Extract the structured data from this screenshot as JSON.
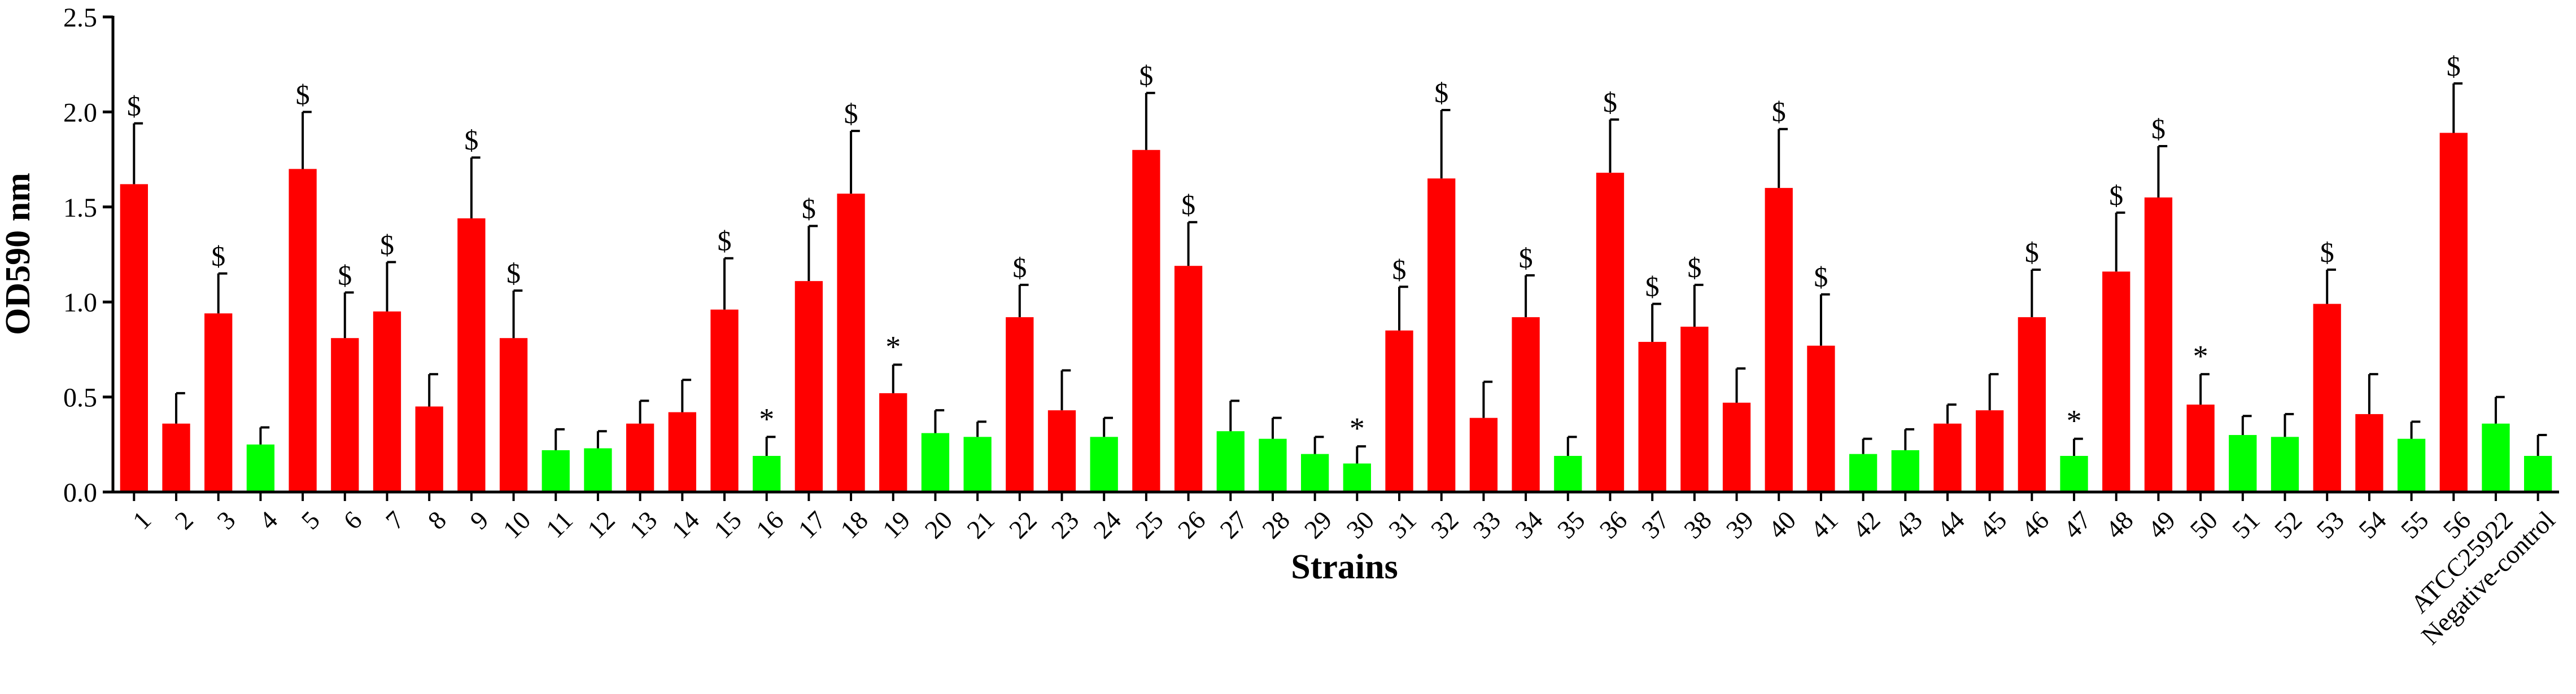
{
  "chart_data": {
    "type": "bar",
    "title": "",
    "xlabel": "Strains",
    "ylabel": "OD590 nm",
    "ylim": [
      0,
      2.5
    ],
    "yticks": [
      "0.0",
      "0.5",
      "1.0",
      "1.5",
      "2.0",
      "2.5"
    ],
    "grid": false,
    "legend": "none",
    "colors": {
      "red": "#ff0000",
      "green": "#00ff00",
      "axis": "#000000"
    },
    "categories": [
      "1",
      "2",
      "3",
      "4",
      "5",
      "6",
      "7",
      "8",
      "9",
      "10",
      "11",
      "12",
      "13",
      "14",
      "15",
      "16",
      "17",
      "18",
      "19",
      "20",
      "21",
      "22",
      "23",
      "24",
      "25",
      "26",
      "27",
      "28",
      "29",
      "30",
      "31",
      "32",
      "33",
      "34",
      "35",
      "36",
      "37",
      "38",
      "39",
      "40",
      "41",
      "42",
      "43",
      "44",
      "45",
      "46",
      "47",
      "48",
      "49",
      "50",
      "51",
      "52",
      "53",
      "54",
      "55",
      "56",
      "ATCC25922",
      "Negative-control"
    ],
    "values": [
      1.62,
      0.36,
      0.94,
      0.25,
      1.7,
      0.81,
      0.95,
      0.45,
      1.44,
      0.81,
      0.22,
      0.23,
      0.36,
      0.42,
      0.96,
      0.19,
      1.11,
      1.57,
      0.52,
      0.31,
      0.29,
      0.92,
      0.43,
      0.29,
      1.8,
      1.19,
      0.32,
      0.28,
      0.2,
      0.15,
      0.85,
      1.65,
      0.39,
      0.92,
      0.19,
      1.68,
      0.79,
      0.87,
      0.47,
      1.6,
      0.77,
      0.2,
      0.22,
      0.36,
      0.43,
      0.92,
      0.19,
      1.16,
      1.55,
      0.46,
      0.3,
      0.29,
      0.99,
      0.41,
      0.28,
      1.89,
      0.36,
      0.19
    ],
    "errors": [
      0.32,
      0.16,
      0.21,
      0.09,
      0.3,
      0.24,
      0.26,
      0.17,
      0.32,
      0.25,
      0.11,
      0.09,
      0.12,
      0.17,
      0.27,
      0.1,
      0.29,
      0.33,
      0.15,
      0.12,
      0.08,
      0.17,
      0.21,
      0.1,
      0.3,
      0.23,
      0.16,
      0.11,
      0.09,
      0.09,
      0.23,
      0.36,
      0.19,
      0.22,
      0.1,
      0.28,
      0.2,
      0.22,
      0.18,
      0.31,
      0.27,
      0.08,
      0.11,
      0.1,
      0.19,
      0.25,
      0.09,
      0.31,
      0.27,
      0.16,
      0.1,
      0.12,
      0.18,
      0.21,
      0.09,
      0.26,
      0.14,
      0.11
    ],
    "bar_colors": [
      "red",
      "red",
      "red",
      "green",
      "red",
      "red",
      "red",
      "red",
      "red",
      "red",
      "green",
      "green",
      "red",
      "red",
      "red",
      "green",
      "red",
      "red",
      "red",
      "green",
      "green",
      "red",
      "red",
      "green",
      "red",
      "red",
      "green",
      "green",
      "green",
      "green",
      "red",
      "red",
      "red",
      "red",
      "green",
      "red",
      "red",
      "red",
      "red",
      "red",
      "red",
      "green",
      "green",
      "red",
      "red",
      "red",
      "green",
      "red",
      "red",
      "red",
      "green",
      "green",
      "red",
      "red",
      "green",
      "red",
      "green",
      "green"
    ],
    "annotations": [
      "$",
      "",
      "$",
      "",
      "$",
      "$",
      "$",
      "",
      "$",
      "$",
      "",
      "",
      "",
      "",
      "$",
      "*",
      "$",
      "$",
      "*",
      "",
      "",
      "$",
      "",
      "",
      "$",
      "$",
      "",
      "",
      "",
      "*",
      "$",
      "$",
      "",
      "$",
      "",
      "$",
      "$",
      "$",
      "",
      "$",
      "$",
      "",
      "",
      "",
      "",
      "$",
      "*",
      "$",
      "$",
      "*",
      "",
      "",
      "$",
      "",
      "",
      "$",
      "",
      ""
    ]
  }
}
